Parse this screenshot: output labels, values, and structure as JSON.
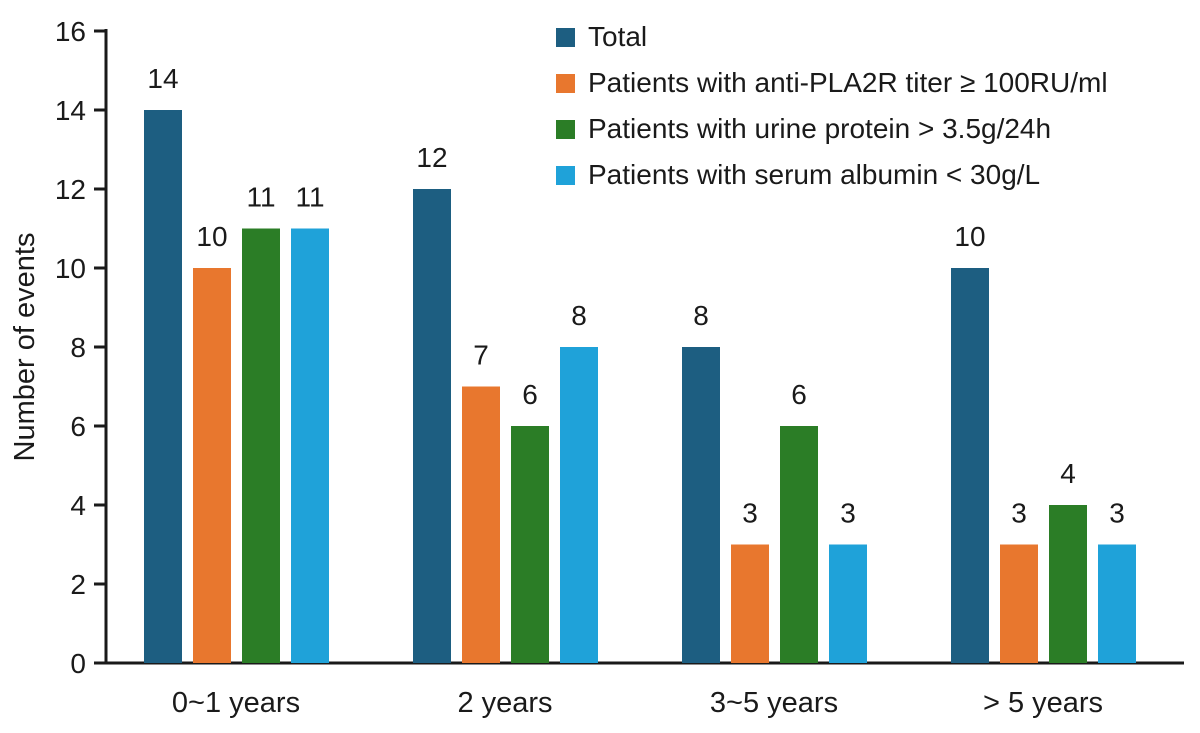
{
  "chart_data": {
    "type": "bar",
    "title": "",
    "xlabel": "",
    "ylabel": "Number of events",
    "ylim": [
      0,
      16
    ],
    "yticks": [
      0,
      2,
      4,
      6,
      8,
      10,
      12,
      14,
      16
    ],
    "grid": false,
    "bar_value_labels": true,
    "legend_position": "upper right inside",
    "categories": [
      "0~1 years",
      "2 years",
      "3~5 years",
      "> 5 years"
    ],
    "series": [
      {
        "name": "Total",
        "color": "#1d5e81",
        "values": [
          14,
          12,
          8,
          10
        ]
      },
      {
        "name": "Patients with anti-PLA2R titer ≥ 100RU/ml",
        "color": "#e8772e",
        "values": [
          10,
          7,
          3,
          3
        ]
      },
      {
        "name": "Patients with urine protein > 3.5g/24h",
        "color": "#2b7d26",
        "values": [
          11,
          6,
          6,
          4
        ]
      },
      {
        "name": "Patients with serum albumin < 30g/L",
        "color": "#1fa2d9",
        "values": [
          11,
          8,
          3,
          3
        ]
      }
    ],
    "axis_color": "#1a1a1a",
    "text_color": "#1a1a1a"
  }
}
